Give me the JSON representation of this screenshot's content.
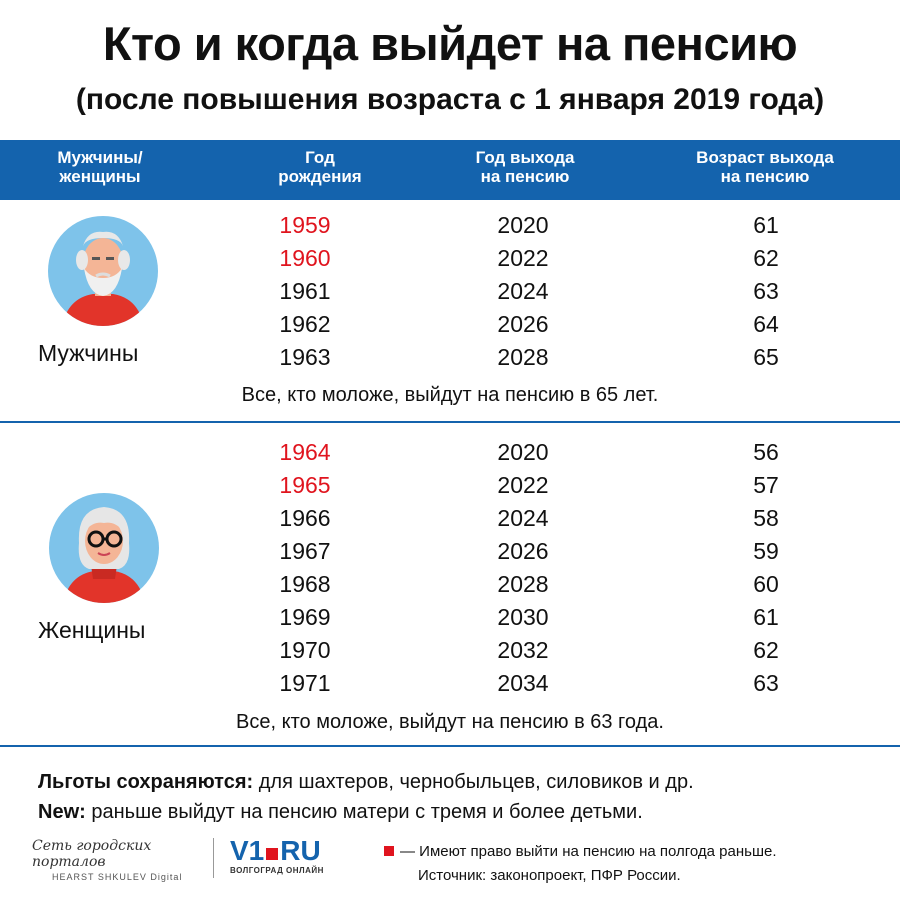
{
  "title": "Кто и когда выйдет на пенсию",
  "subtitle": "(после повышения возраста с 1 января 2019 года)",
  "header": {
    "col1_l1": "Мужчины/",
    "col1_l2": "женщины",
    "col2_l1": "Год",
    "col2_l2": "рождения",
    "col3_l1": "Год выхода",
    "col3_l2": "на пенсию",
    "col4_l1": "Возраст выхода",
    "col4_l2": "на пенсию"
  },
  "men": {
    "label": "Мужчины",
    "rows": [
      {
        "birth": "1959",
        "retire": "2020",
        "age": "61",
        "early": true
      },
      {
        "birth": "1960",
        "retire": "2022",
        "age": "62",
        "early": true
      },
      {
        "birth": "1961",
        "retire": "2024",
        "age": "63",
        "early": false
      },
      {
        "birth": "1962",
        "retire": "2026",
        "age": "64",
        "early": false
      },
      {
        "birth": "1963",
        "retire": "2028",
        "age": "65",
        "early": false
      }
    ],
    "note": "Все, кто моложе, выйдут на пенсию в 65 лет."
  },
  "women": {
    "label": "Женщины",
    "rows": [
      {
        "birth": "1964",
        "retire": "2020",
        "age": "56",
        "early": true
      },
      {
        "birth": "1965",
        "retire": "2022",
        "age": "57",
        "early": true
      },
      {
        "birth": "1966",
        "retire": "2024",
        "age": "58",
        "early": false
      },
      {
        "birth": "1967",
        "retire": "2026",
        "age": "59",
        "early": false
      },
      {
        "birth": "1968",
        "retire": "2028",
        "age": "60",
        "early": false
      },
      {
        "birth": "1969",
        "retire": "2030",
        "age": "61",
        "early": false
      },
      {
        "birth": "1970",
        "retire": "2032",
        "age": "62",
        "early": false
      },
      {
        "birth": "1971",
        "retire": "2034",
        "age": "63",
        "early": false
      }
    ],
    "note": "Все, кто моложе, выйдут на пенсию в 63 года."
  },
  "benefits": {
    "bold": "Льготы сохраняются:",
    "text": " для шахтеров, чернобыльцев, силовиков и др."
  },
  "new": {
    "bold": "New:",
    "text": " раньше выйдут на пенсию матери с тремя и более детьми."
  },
  "logo_network": {
    "line1": "Сеть городских порталов",
    "line2": "HEARST SHKULEV Digital"
  },
  "logo_v1": {
    "v": "V1",
    "ru": "RU",
    "sub": "ВОЛГОГРАД ОНЛАЙН"
  },
  "legend_text": "— Имеют право выйти на пенсию на полгода раньше.",
  "source": "Источник: законопроект, ПФР России.",
  "colors": {
    "accent_blue": "#1463ad",
    "highlight_red": "#e0141e"
  },
  "icons": [
    "elderly-man-icon",
    "elderly-woman-icon"
  ]
}
